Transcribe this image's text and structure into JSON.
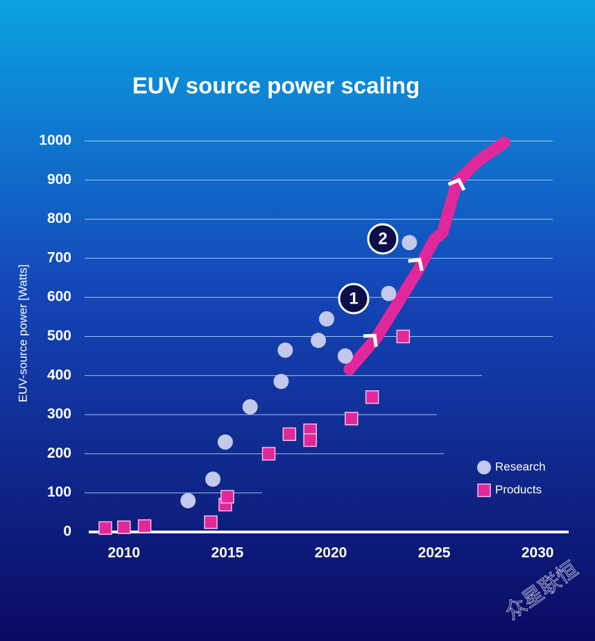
{
  "chart_data": {
    "type": "scatter",
    "title": "EUV source power scaling",
    "y_label": "EUV-source power [Watts]",
    "xlim": [
      2008.3,
      2031.5
    ],
    "ylim": [
      0,
      1000
    ],
    "xticks": [
      2010,
      2015,
      2020,
      2025,
      2030
    ],
    "yticks": [
      0,
      100,
      200,
      300,
      400,
      500,
      600,
      700,
      800,
      900,
      1000
    ],
    "grid": true,
    "legend": "lower right",
    "series": [
      {
        "name": "Research",
        "color": "#c4c8ec",
        "marker": "circle",
        "x": [
          2013.1,
          2014.3,
          2014.9,
          2016.1,
          2017.6,
          2017.8,
          2019.4,
          2019.8,
          2020.7,
          2022.8,
          2023.8
        ],
        "values": [
          80,
          135,
          230,
          320,
          385,
          465,
          490,
          545,
          450,
          610,
          740
        ]
      },
      {
        "name": "Products",
        "color": "#e0289a",
        "marker": "square",
        "x": [
          2009.1,
          2010.0,
          2011.0,
          2014.2,
          2014.9,
          2015.0,
          2017.0,
          2018.0,
          2019.0,
          2019.0,
          2021.0,
          2022.0,
          2023.5
        ],
        "values": [
          10,
          12,
          15,
          25,
          70,
          90,
          200,
          250,
          260,
          235,
          290,
          345,
          500
        ]
      }
    ],
    "roadmap": {
      "color": "#e0289a",
      "x": [
        2020.9,
        2022.2,
        2024.2,
        2025.0,
        2025.4,
        2026.1,
        2027.1,
        2028.4
      ],
      "values": [
        416,
        496,
        668,
        748,
        765,
        895,
        948,
        996
      ]
    },
    "annotations": [
      "1",
      "2"
    ],
    "watermark": "众星联恒"
  }
}
